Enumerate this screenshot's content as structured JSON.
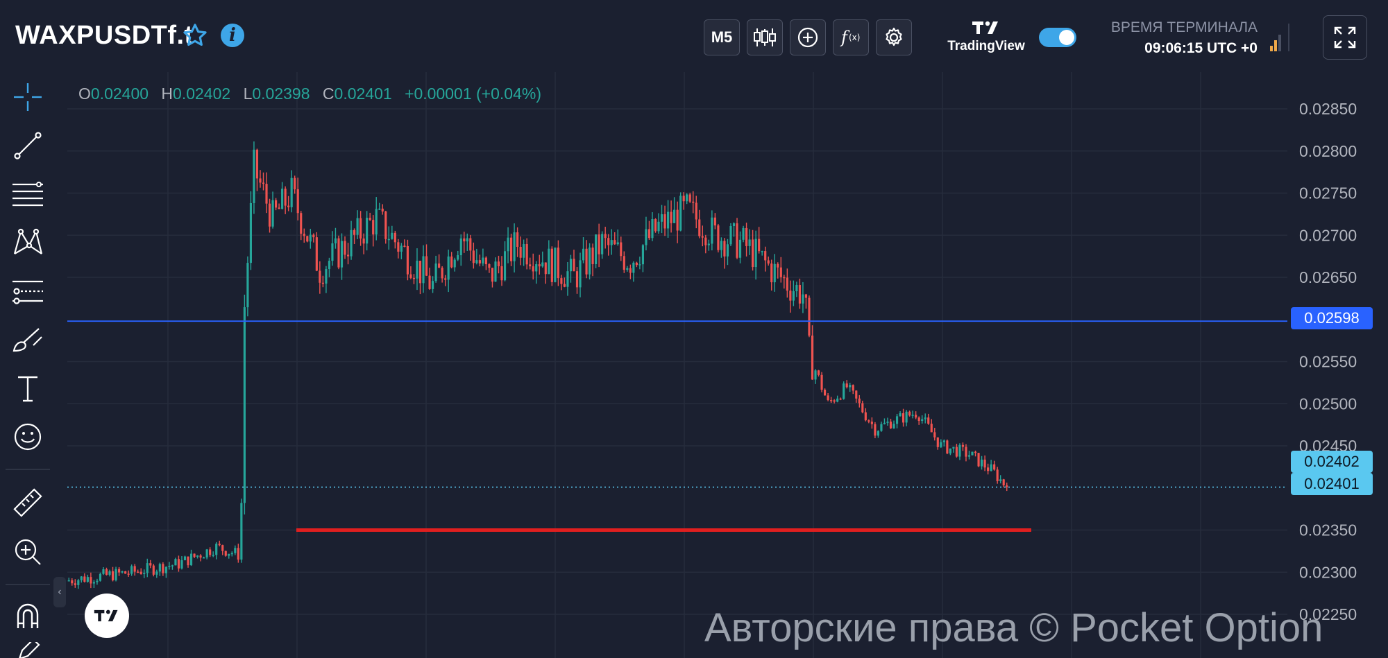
{
  "header": {
    "symbol": "WAXPUSDTf.t",
    "timeframe_label": "M5",
    "tradingview_label": "TradingView",
    "terminal_time_label": "ВРЕМЯ ТЕРМИНАЛА",
    "terminal_time_value": "09:06:15 UTC +0"
  },
  "icons": {
    "favorite": "star-icon",
    "info": "info-icon",
    "chart_type": "candles-icon",
    "add": "plus-icon",
    "indicators": "fx-icon",
    "settings": "gear-icon",
    "fullscreen": "fullscreen-icon"
  },
  "left_toolbar": [
    "crosshair-icon",
    "trendline-icon",
    "fib-lines-icon",
    "pattern-icon",
    "forecast-icon",
    "brush-icon",
    "text-icon",
    "emoji-icon",
    "ruler-icon",
    "zoom-in-icon",
    "magnet-icon"
  ],
  "ohlc": {
    "o_label": "O",
    "o_value": "0.02400",
    "h_label": "H",
    "h_value": "0.02402",
    "l_label": "L",
    "l_value": "0.02398",
    "c_label": "C",
    "c_value": "0.02401",
    "change": "+0.00001 (+0.04%)"
  },
  "colors": {
    "background": "#1b2030",
    "up": "#26a69a",
    "down": "#ef5350",
    "accent": "#3ea6e8",
    "blue_line": "#2962ff",
    "red_line": "#e01f1f",
    "price_badge": "#5ac8f0"
  },
  "chart_data": {
    "type": "candlestick",
    "symbol": "WAXPUSDTf.t",
    "timeframe": "M5",
    "ylim": [
      0.02245,
      0.02875
    ],
    "y_ticks": [
      "0.02850",
      "0.02800",
      "0.02750",
      "0.02700",
      "0.02650",
      "0.02550",
      "0.02500",
      "0.02450",
      "0.02350",
      "0.02300",
      "0.02250"
    ],
    "price_path": [
      [
        0,
        0.0229
      ],
      [
        0.07,
        0.023
      ],
      [
        0.12,
        0.0231
      ],
      [
        0.16,
        0.0233
      ],
      [
        0.186,
        0.0232
      ],
      [
        0.189,
        0.026
      ],
      [
        0.2,
        0.0278
      ],
      [
        0.22,
        0.0272
      ],
      [
        0.24,
        0.0275
      ],
      [
        0.27,
        0.0266
      ],
      [
        0.3,
        0.0269
      ],
      [
        0.33,
        0.0272
      ],
      [
        0.36,
        0.0268
      ],
      [
        0.39,
        0.0264
      ],
      [
        0.42,
        0.027
      ],
      [
        0.45,
        0.0265
      ],
      [
        0.48,
        0.0269
      ],
      [
        0.51,
        0.0267
      ],
      [
        0.54,
        0.0265
      ],
      [
        0.57,
        0.0269
      ],
      [
        0.6,
        0.0267
      ],
      [
        0.63,
        0.0271
      ],
      [
        0.66,
        0.0273
      ],
      [
        0.69,
        0.027
      ],
      [
        0.72,
        0.0269
      ],
      [
        0.75,
        0.0266
      ],
      [
        0.77,
        0.0264
      ],
      [
        0.785,
        0.0263
      ],
      [
        0.79,
        0.0256
      ],
      [
        0.81,
        0.025
      ],
      [
        0.83,
        0.0252
      ],
      [
        0.86,
        0.0247
      ],
      [
        0.88,
        0.0248
      ],
      [
        0.905,
        0.0249
      ],
      [
        0.93,
        0.0245
      ],
      [
        0.96,
        0.0244
      ],
      [
        0.985,
        0.0242
      ],
      [
        1,
        0.02401
      ]
    ],
    "horizontal_lines": [
      {
        "price": 0.02598,
        "color": "#2962ff"
      },
      {
        "price": 0.0235,
        "color": "#e01f1f"
      },
      {
        "price": 0.02401,
        "color": "#5ac8f0",
        "style": "dotted"
      }
    ],
    "last_price_badges": [
      "0.02402",
      "0.02401"
    ],
    "level_badge": "0.02598"
  },
  "watermark": "Авторские права © Pocket Option"
}
